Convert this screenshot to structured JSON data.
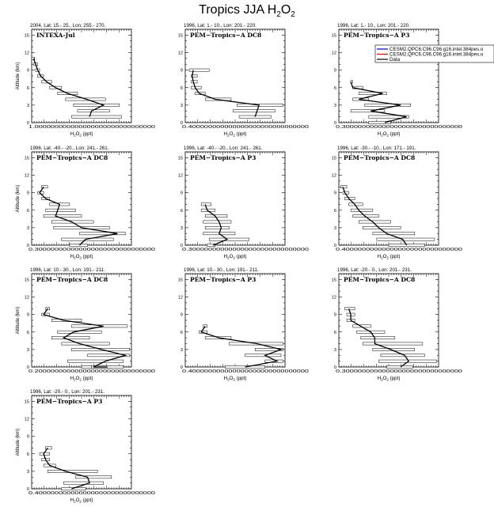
{
  "figure": {
    "title": "Tropics JJA H",
    "title_sub": "2",
    "title_tail": "O",
    "title_sub2": "2",
    "ylabel": "Altitude (km)",
    "xlabel": "H",
    "xlabel_tail": "O",
    "xlabel_unit": "(ppt)",
    "legend": [
      {
        "label": "CESM2.QPC6.C96.C96.g16.intel.384pes.o",
        "color": "#0000cc"
      },
      {
        "label": "CESM2.QPC6.C96.C96.g16.intel.384pes.o",
        "color": "#cc0000"
      },
      {
        "label": "Data",
        "color": "#000000"
      }
    ]
  },
  "chart_data": [
    {
      "type": "line",
      "title": "2004, Lat: 15.- 25., Lon: 255.- 270.",
      "campaign": "INTEXA-Jul",
      "x_start_label": "1.000000000000000000000000000000",
      "yticks": [
        0,
        3,
        6,
        9,
        12,
        15
      ],
      "ylim": [
        0,
        16
      ],
      "ylabel": "Altitude (km)",
      "series": [
        {
          "name": "Data",
          "x": [
            0.02,
            0.04,
            0.06,
            0.09,
            0.15,
            0.24,
            0.36,
            0.55,
            0.72,
            0.6,
            0.58
          ],
          "y": [
            11,
            10,
            9,
            8,
            7,
            6,
            5,
            4,
            3,
            2,
            1
          ]
        }
      ],
      "ranges": [
        [
          0,
          0.03
        ],
        [
          0.02,
          0.06
        ],
        [
          0.04,
          0.08
        ],
        [
          0.06,
          0.12
        ],
        [
          0.1,
          0.2
        ],
        [
          0.18,
          0.3
        ],
        [
          0.26,
          0.46
        ],
        [
          0.34,
          0.74
        ],
        [
          0.42,
          0.88
        ],
        [
          0.46,
          0.78
        ],
        [
          0.4,
          0.9
        ]
      ]
    },
    {
      "type": "line",
      "title": "1996, Lat: 1.- 10., Lon: 201.- 220.",
      "campaign": "PEM−Tropics−A DC8",
      "x_start_label": "0.400000000000000000000000000000",
      "yticks": [
        0,
        3,
        6,
        9,
        12,
        15
      ],
      "ylim": [
        0,
        16
      ],
      "series": [
        {
          "name": "Data",
          "x": [
            0.08,
            0.07,
            0.08,
            0.1,
            0.14,
            0.3,
            0.74,
            0.72,
            0.7
          ],
          "y": [
            9,
            8,
            7,
            6,
            5,
            4,
            3,
            2,
            1
          ]
        }
      ],
      "ranges": [
        [
          0.04,
          0.24
        ],
        [
          0.06,
          0.12
        ],
        [
          0.06,
          0.12
        ],
        [
          0.06,
          0.16
        ],
        [
          0.1,
          0.2
        ],
        [
          0.2,
          0.46
        ],
        [
          0.52,
          0.98
        ],
        [
          0.48,
          0.9
        ],
        [
          0.54,
          0.86
        ]
      ]
    },
    {
      "type": "line",
      "title": "1996, Lat: 1.- 10., Lon: 201.- 220.",
      "campaign": "PEM−Tropics−A P3",
      "x_start_label": "0.300000000000000000000000000000",
      "yticks": [
        0,
        3,
        6,
        9,
        12,
        15
      ],
      "ylim": [
        0,
        16
      ],
      "series": [
        {
          "name": "Data",
          "x": [
            0.12,
            0.14,
            0.44,
            0.2,
            0.62,
            0.32,
            0.68,
            0.46
          ],
          "y": [
            7,
            6,
            5,
            4,
            3,
            2,
            1,
            0
          ]
        }
      ],
      "ranges": [
        [
          0.12,
          0.14
        ],
        [
          0.14,
          0.24
        ],
        [
          0.2,
          0.48
        ],
        [
          0.14,
          0.3
        ],
        [
          0.26,
          0.72
        ],
        [
          0.12,
          0.46
        ],
        [
          0.3,
          0.7
        ],
        [
          0.3,
          0.52
        ]
      ],
      "show_legend": true
    },
    {
      "type": "line",
      "title": "1996, Lat: -40.- -20., Lon: 241.- 261.",
      "campaign": "PEM−Tropics−A DC8",
      "x_start_label": "0.300000000000000000000000000000",
      "yticks": [
        0,
        3,
        6,
        9,
        12,
        15
      ],
      "ylim": [
        0,
        16
      ],
      "series": [
        {
          "name": "Data",
          "x": [
            0.12,
            0.08,
            0.14,
            0.28,
            0.26,
            0.24,
            0.4,
            0.5,
            0.86,
            0.54,
            0.48
          ],
          "y": [
            10,
            9,
            8,
            7,
            6,
            5,
            4,
            3,
            2,
            1,
            0
          ]
        }
      ],
      "ranges": [
        [
          0.1,
          0.16
        ],
        [
          0.06,
          0.12
        ],
        [
          0.1,
          0.18
        ],
        [
          0.18,
          0.38
        ],
        [
          0.14,
          0.44
        ],
        [
          0.12,
          0.5
        ],
        [
          0.2,
          0.62
        ],
        [
          0.22,
          0.78
        ],
        [
          0.48,
          0.94
        ],
        [
          0.3,
          0.82
        ],
        [
          0.38,
          0.56
        ]
      ]
    },
    {
      "type": "line",
      "title": "1996, Lat: -40.- -20., Lon: 241.- 261.",
      "campaign": "PEM−Tropics−A P3",
      "x_start_label": "0.300000000000000000000000000000",
      "yticks": [
        0,
        3,
        6,
        9,
        12,
        15
      ],
      "ylim": [
        0,
        16
      ],
      "series": [
        {
          "name": "Data",
          "x": [
            0.2,
            0.22,
            0.3,
            0.34,
            0.36,
            0.34,
            0.42,
            0.28
          ],
          "y": [
            7,
            6,
            5,
            4,
            3,
            2,
            1,
            0
          ]
        }
      ],
      "ranges": [
        [
          0.16,
          0.26
        ],
        [
          0.16,
          0.3
        ],
        [
          0.2,
          0.42
        ],
        [
          0.18,
          0.46
        ],
        [
          0.2,
          0.44
        ],
        [
          0.18,
          0.5
        ],
        [
          0.24,
          0.64
        ],
        [
          0.22,
          0.3
        ]
      ]
    },
    {
      "type": "line",
      "title": "1996, Lat: -30.- -10., Lon: 171.- 191.",
      "campaign": "PEM−Tropics−A DC8",
      "x_start_label": "0.400000000000000000000000000000",
      "yticks": [
        0,
        3,
        6,
        9,
        12,
        15
      ],
      "ylim": [
        0,
        16
      ],
      "series": [
        {
          "name": "Data",
          "x": [
            0.04,
            0.06,
            0.1,
            0.16,
            0.2,
            0.26,
            0.34,
            0.4,
            0.48,
            0.64,
            0.68
          ],
          "y": [
            10,
            9,
            8,
            7,
            6,
            5,
            4,
            3,
            2,
            1,
            0
          ]
        }
      ],
      "ranges": [
        [
          0.02,
          0.08
        ],
        [
          0.04,
          0.1
        ],
        [
          0.06,
          0.16
        ],
        [
          0.1,
          0.24
        ],
        [
          0.12,
          0.34
        ],
        [
          0.14,
          0.4
        ],
        [
          0.2,
          0.52
        ],
        [
          0.24,
          0.62
        ],
        [
          0.34,
          0.76
        ],
        [
          0.38,
          0.96
        ],
        [
          0.5,
          0.86
        ]
      ]
    },
    {
      "type": "line",
      "title": "1996, Lat: 10.- 30., Lon: 191.- 211.",
      "campaign": "PEM−Tropics−A DC8",
      "x_start_label": "0.200000000000000000000000000000",
      "yticks": [
        0,
        3,
        6,
        9,
        12,
        15
      ],
      "ylim": [
        0,
        16
      ],
      "series": [
        {
          "name": "Data",
          "x": [
            0.16,
            0.12,
            0.32,
            0.72,
            0.42,
            0.32,
            0.48,
            0.7,
            0.94,
            0.74,
            0.62,
            0.76
          ],
          "y": [
            10,
            9,
            8,
            7,
            6,
            5,
            4,
            3,
            2,
            1,
            0,
            0
          ]
        }
      ],
      "ranges": [
        [
          0.14,
          0.18
        ],
        [
          0.1,
          0.18
        ],
        [
          0.2,
          0.5
        ],
        [
          0.4,
          0.96
        ],
        [
          0.26,
          0.7
        ],
        [
          0.2,
          0.58
        ],
        [
          0.3,
          0.78
        ],
        [
          0.4,
          0.98
        ],
        [
          0.56,
          0.98
        ],
        [
          0.36,
          0.92
        ],
        [
          0.5,
          0.8
        ],
        [
          0.6,
          0.92
        ]
      ]
    },
    {
      "type": "line",
      "title": "1996, Lat: 10.- 30., Lon: 191.- 211.",
      "campaign": "PEM−Tropics−A P3",
      "x_start_label": "0.400000000000000000000000000000",
      "yticks": [
        0,
        3,
        6,
        9,
        12,
        15
      ],
      "ylim": [
        0,
        16
      ],
      "series": [
        {
          "name": "Data",
          "x": [
            0.2,
            0.16,
            0.34,
            0.72,
            0.96,
            0.8,
            0.92,
            0.6
          ],
          "y": [
            7,
            6,
            5,
            4,
            3,
            2,
            1,
            0
          ]
        }
      ],
      "ranges": [
        [
          0.18,
          0.22
        ],
        [
          0.14,
          0.22
        ],
        [
          0.2,
          0.46
        ],
        [
          0.44,
          0.98
        ],
        [
          0.7,
          0.98
        ],
        [
          0.6,
          0.96
        ],
        [
          0.8,
          0.98
        ],
        [
          0.4,
          0.8
        ]
      ]
    },
    {
      "type": "line",
      "title": "1996, Lat: -20.- 0., Lon: 201.- 231.",
      "campaign": "PEM−Tropics−A DC8",
      "x_start_label": "0.300000000000000000000000000000",
      "yticks": [
        0,
        3,
        6,
        9,
        12,
        15
      ],
      "ylim": [
        0,
        16
      ],
      "series": [
        {
          "name": "Data",
          "x": [
            0.1,
            0.12,
            0.12,
            0.22,
            0.32,
            0.36,
            0.36,
            0.52,
            0.66,
            0.7,
            0.62
          ],
          "y": [
            10,
            9,
            8,
            7,
            6,
            5,
            4,
            3,
            2,
            1,
            0
          ]
        }
      ],
      "ranges": [
        [
          0.06,
          0.16
        ],
        [
          0.08,
          0.16
        ],
        [
          0.08,
          0.16
        ],
        [
          0.14,
          0.32
        ],
        [
          0.18,
          0.46
        ],
        [
          0.22,
          0.56
        ],
        [
          0.24,
          0.84
        ],
        [
          0.34,
          0.76
        ],
        [
          0.42,
          0.86
        ],
        [
          0.4,
          0.98
        ],
        [
          0.48,
          0.74
        ]
      ]
    },
    {
      "type": "line",
      "title": "1996, Lat: -20.- 0., Lon: 201.- 231.",
      "campaign": "PEM−Tropics−A P3",
      "x_start_label": "0.400000000000000000000000000000",
      "yticks": [
        0,
        3,
        6,
        9,
        12,
        15
      ],
      "ylim": [
        0,
        16
      ],
      "series": [
        {
          "name": "Data",
          "x": [
            0.16,
            0.12,
            0.14,
            0.18,
            0.34,
            0.56,
            0.58,
            0.4
          ],
          "y": [
            7,
            6,
            5,
            4,
            3,
            2,
            1,
            0
          ]
        }
      ],
      "ranges": [
        [
          0.14,
          0.2
        ],
        [
          0.08,
          0.18
        ],
        [
          0.1,
          0.18
        ],
        [
          0.12,
          0.24
        ],
        [
          0.16,
          0.66
        ],
        [
          0.44,
          0.8
        ],
        [
          0.32,
          0.72
        ],
        [
          0.3,
          0.54
        ]
      ]
    }
  ]
}
